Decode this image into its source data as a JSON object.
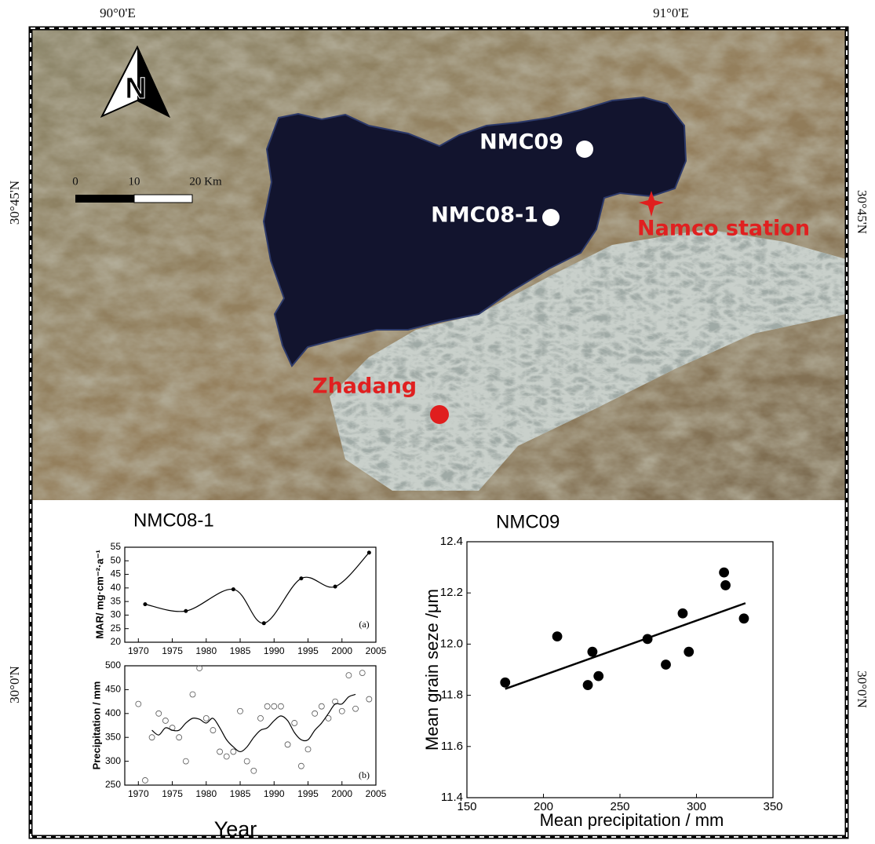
{
  "map": {
    "lon_labels": [
      "90°0'E",
      "91°0'E"
    ],
    "lat_labels_left": [
      "30°45'N",
      "30°0'N"
    ],
    "lat_labels_right": [
      "30°45'N",
      "30°0'N"
    ],
    "north": "N",
    "scale_labels": [
      "0",
      "10",
      "20 Km"
    ],
    "sites": [
      "NMC09",
      "NMC08-1",
      "Namco station",
      "Zhadang"
    ]
  },
  "chart_data": [
    {
      "type": "line",
      "title": "NMC08-1",
      "y_label": "MAR/ mg·cm⁻²·a⁻¹",
      "annotation": "(a)",
      "smooth": true,
      "color": "#000",
      "x": [
        1971,
        1977,
        1984,
        1988.5,
        1994,
        1999,
        2004
      ],
      "values": [
        34,
        31.5,
        39.5,
        27,
        43.5,
        40.5,
        53
      ],
      "xlim": [
        1968,
        2005
      ],
      "xticks": [
        1970,
        1975,
        1980,
        1985,
        1990,
        1995,
        2000,
        2005
      ],
      "ylim": [
        20,
        55
      ],
      "yticks": [
        20,
        25,
        30,
        35,
        40,
        45,
        50,
        55
      ]
    },
    {
      "type": "scatter",
      "y_label": "Precipitation / mm",
      "x_label": "Year",
      "annotation": "(b)",
      "marker_fill": "none",
      "color": "#555",
      "x": [
        1970,
        1971,
        1972,
        1973,
        1974,
        1975,
        1976,
        1977,
        1978,
        1979,
        1980,
        1981,
        1982,
        1983,
        1984,
        1985,
        1986,
        1987,
        1988,
        1989,
        1990,
        1991,
        1992,
        1993,
        1994,
        1995,
        1996,
        1997,
        1998,
        1999,
        2000,
        2001,
        2002,
        2003,
        2004
      ],
      "values": [
        420,
        260,
        350,
        400,
        385,
        370,
        350,
        300,
        440,
        495,
        390,
        365,
        320,
        310,
        320,
        405,
        300,
        280,
        390,
        415,
        415,
        415,
        335,
        380,
        290,
        325,
        400,
        415,
        390,
        425,
        405,
        480,
        410,
        485,
        430
      ],
      "smoothed": {
        "x": [
          1972,
          1973,
          1974,
          1975,
          1976,
          1977,
          1978,
          1979,
          1980,
          1981,
          1982,
          1983,
          1984,
          1985,
          1986,
          1987,
          1988,
          1989,
          1990,
          1991,
          1992,
          1993,
          1994,
          1995,
          1996,
          1997,
          1998,
          1999,
          2000,
          2001,
          2002
        ],
        "values": [
          365,
          355,
          370,
          365,
          365,
          380,
          390,
          388,
          380,
          390,
          370,
          345,
          330,
          320,
          330,
          350,
          365,
          370,
          385,
          395,
          385,
          360,
          345,
          345,
          365,
          380,
          400,
          420,
          420,
          435,
          440
        ]
      },
      "xlim": [
        1968,
        2005
      ],
      "xticks": [
        1970,
        1975,
        1980,
        1985,
        1990,
        1995,
        2000,
        2005
      ],
      "ylim": [
        250,
        500
      ],
      "yticks": [
        250,
        300,
        350,
        400,
        450,
        500
      ]
    },
    {
      "type": "scatter",
      "title": "NMC09",
      "x_label": "Mean precipitation / mm",
      "y_label": "Mean grain seze /μm",
      "marker_fill": "#000",
      "color": "#000",
      "x": [
        175,
        209,
        229,
        232,
        236,
        268,
        280,
        291,
        295,
        318,
        319,
        331
      ],
      "values": [
        11.85,
        12.03,
        11.84,
        11.97,
        11.875,
        12.02,
        11.92,
        12.12,
        11.97,
        12.28,
        12.23,
        12.1
      ],
      "trendline": {
        "x": [
          175,
          332
        ],
        "y": [
          11.825,
          12.16
        ]
      },
      "xlim": [
        150,
        350
      ],
      "xticks": [
        150,
        200,
        250,
        300,
        350
      ],
      "ylim": [
        11.4,
        12.4
      ],
      "yticks": [
        11.4,
        11.6,
        11.8,
        {
          "value": 12,
          "label": "12.0"
        },
        12.2,
        12.4
      ]
    }
  ]
}
